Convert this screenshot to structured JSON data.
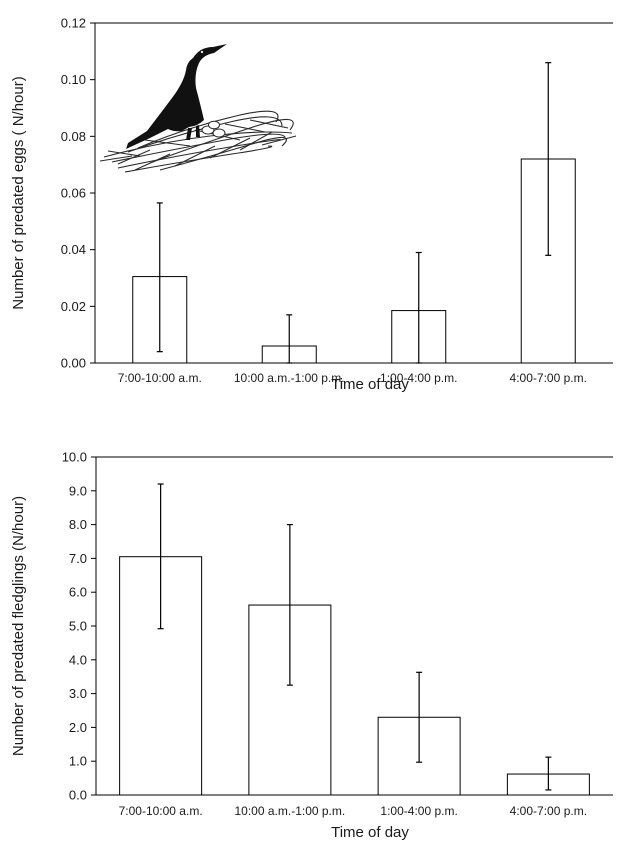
{
  "chart_data": [
    {
      "type": "bar",
      "ylabel": "Number of predated eggs ( N/hour)",
      "xlabel": "Time of day",
      "categories": [
        "7:00-10:00 a.m.",
        "10:00 a.m.-1:00 p.m.",
        "1:00-4:00 p.m.",
        "4:00-7:00 p.m."
      ],
      "values": [
        0.0305,
        0.006,
        0.0185,
        0.072
      ],
      "error_low": [
        0.004,
        0.0,
        0.0,
        0.038
      ],
      "error_high": [
        0.0565,
        0.017,
        0.039,
        0.106
      ],
      "ylim": [
        0,
        0.12
      ],
      "yticks": [
        "0.00",
        "0.02",
        "0.04",
        "0.06",
        "0.08",
        "0.10",
        "0.12"
      ],
      "grid": false,
      "bar_color": "#ffffff",
      "edge_color": "#000000",
      "illustration": "cormorant-on-nest-drawing"
    },
    {
      "type": "bar",
      "ylabel": "Number of predated fledglings (N/hour)",
      "xlabel": "Time of day",
      "categories": [
        "7:00-10:00 a.m.",
        "10:00 a.m.-1:00 p.m.",
        "1:00-4:00 p.m.",
        "4:00-7:00 p.m."
      ],
      "values": [
        7.05,
        5.62,
        2.3,
        0.62
      ],
      "error_low": [
        4.92,
        3.25,
        0.97,
        0.15
      ],
      "error_high": [
        9.2,
        8.0,
        3.63,
        1.12
      ],
      "ylim": [
        0,
        10
      ],
      "yticks": [
        "0.0",
        "1.0",
        "2.0",
        "3.0",
        "4.0",
        "5.0",
        "6.0",
        "7.0",
        "8.0",
        "9.0",
        "10.0"
      ],
      "grid": false,
      "bar_color": "#ffffff",
      "edge_color": "#000000"
    }
  ]
}
